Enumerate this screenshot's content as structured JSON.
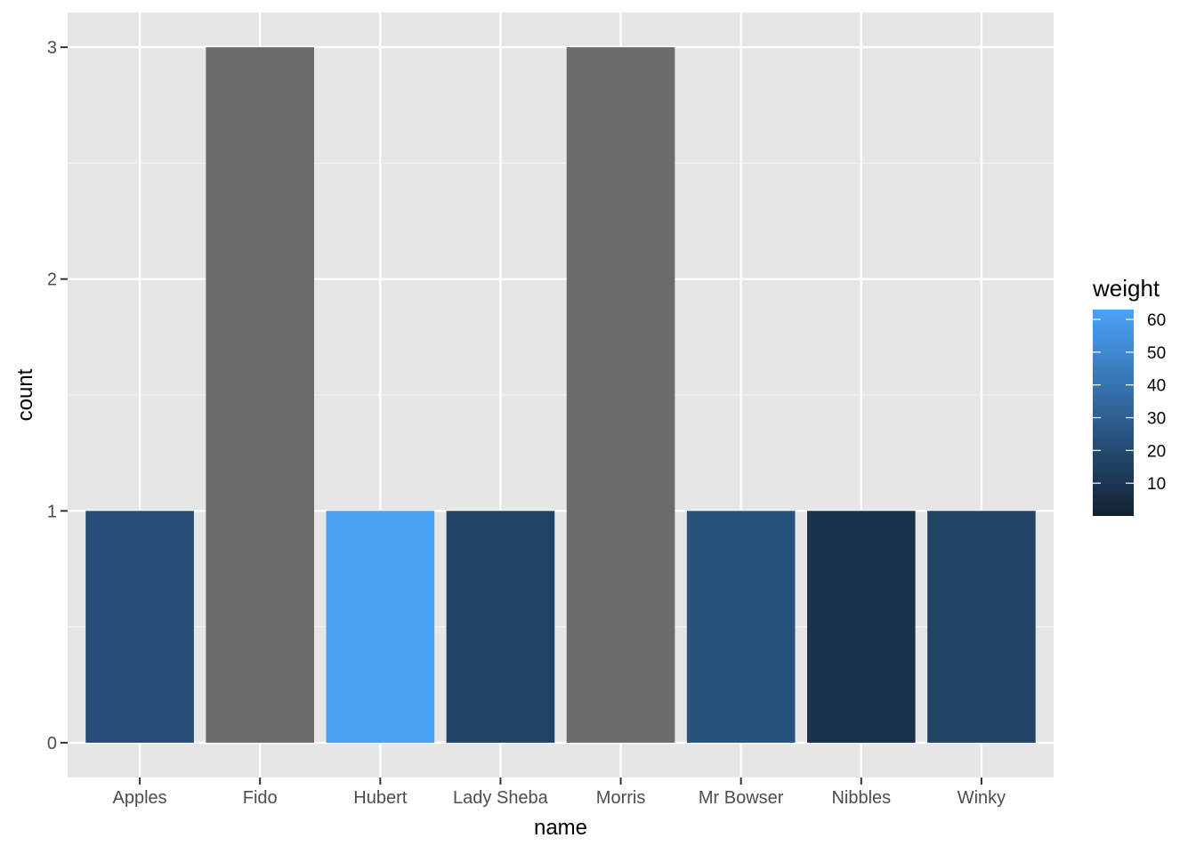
{
  "chart_data": {
    "type": "bar",
    "xlabel": "name",
    "ylabel": "count",
    "categories": [
      "Apples",
      "Fido",
      "Hubert",
      "Lady Sheba",
      "Morris",
      "Mr Bowser",
      "Nibbles",
      "Winky"
    ],
    "values": [
      1,
      3,
      1,
      1,
      3,
      1,
      1,
      1
    ],
    "fill_weight": [
      22,
      null,
      62,
      16,
      null,
      24,
      8,
      17
    ],
    "ylim": [
      -0.15,
      3.15
    ],
    "yticks": [
      0,
      1,
      2,
      3
    ],
    "grid": true,
    "na_color": "#6b6b6b",
    "panel_color": "#e6e6e6",
    "legend": {
      "title": "weight",
      "placement": "right",
      "ticks": [
        10,
        20,
        30,
        40,
        50,
        60
      ],
      "range": [
        0,
        63
      ],
      "color_low": "#132132",
      "color_high": "#4aa3f8"
    }
  }
}
